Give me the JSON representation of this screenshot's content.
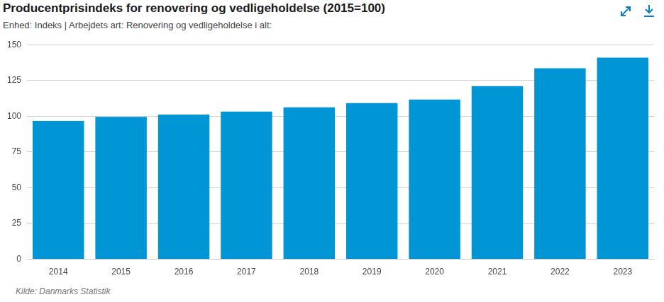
{
  "chart_data": {
    "type": "bar",
    "title": "Producentprisindeks for renovering og vedligeholdelse (2015=100)",
    "subtitle": "Enhed: Indeks | Arbejdets art: Renovering og vedligeholdelse i alt:",
    "source": "Kilde: Danmarks Statistik",
    "categories": [
      "2014",
      "2015",
      "2016",
      "2017",
      "2018",
      "2019",
      "2020",
      "2021",
      "2022",
      "2023"
    ],
    "values": [
      96.7,
      99.5,
      101.2,
      103.2,
      106.2,
      109.2,
      111.7,
      121.1,
      133.5,
      141.0
    ],
    "color": "#0096d6",
    "ylim": [
      0,
      150
    ],
    "yticks": [
      0,
      25,
      50,
      75,
      100,
      125,
      150
    ],
    "grid": true
  }
}
